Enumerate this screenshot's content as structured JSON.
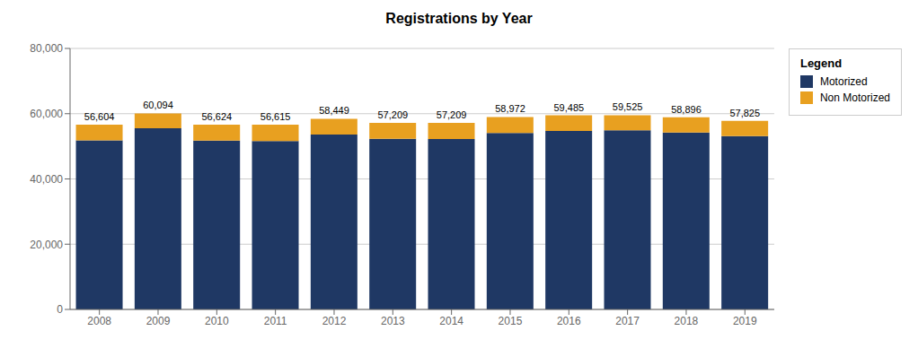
{
  "chart_data": {
    "type": "bar",
    "title": "Registrations by Year",
    "categories": [
      "2008",
      "2009",
      "2010",
      "2011",
      "2012",
      "2013",
      "2014",
      "2015",
      "2016",
      "2017",
      "2018",
      "2019"
    ],
    "series": [
      {
        "name": "Motorized",
        "color": "#1F3864",
        "values": [
          51800,
          55500,
          51750,
          51600,
          53600,
          52300,
          52200,
          54100,
          54700,
          54900,
          54200,
          53100
        ]
      },
      {
        "name": "Non Motorized",
        "color": "#E8A020",
        "values": [
          4804,
          4594,
          4874,
          5015,
          4849,
          4909,
          5009,
          4872,
          4785,
          4625,
          4696,
          4725
        ]
      }
    ],
    "stacked": true,
    "totals": [
      56604,
      60094,
      56624,
      56615,
      58449,
      57209,
      57209,
      58972,
      59485,
      59525,
      58896,
      57825
    ],
    "total_labels": [
      "56,604",
      "60,094",
      "56,624",
      "56,615",
      "58,449",
      "57,209",
      "57,209",
      "58,972",
      "59,485",
      "59,525",
      "58,896",
      "57,825"
    ],
    "ylim": [
      0,
      80000
    ],
    "yticks": [
      0,
      {
        "value": 20000,
        "label": "20,000"
      },
      {
        "value": 40000,
        "label": "40,000"
      },
      {
        "value": 60000,
        "label": "60,000"
      },
      {
        "value": 80000,
        "label": "80,000"
      }
    ],
    "grid": true,
    "legend": "right",
    "legend_title": "Legend"
  }
}
